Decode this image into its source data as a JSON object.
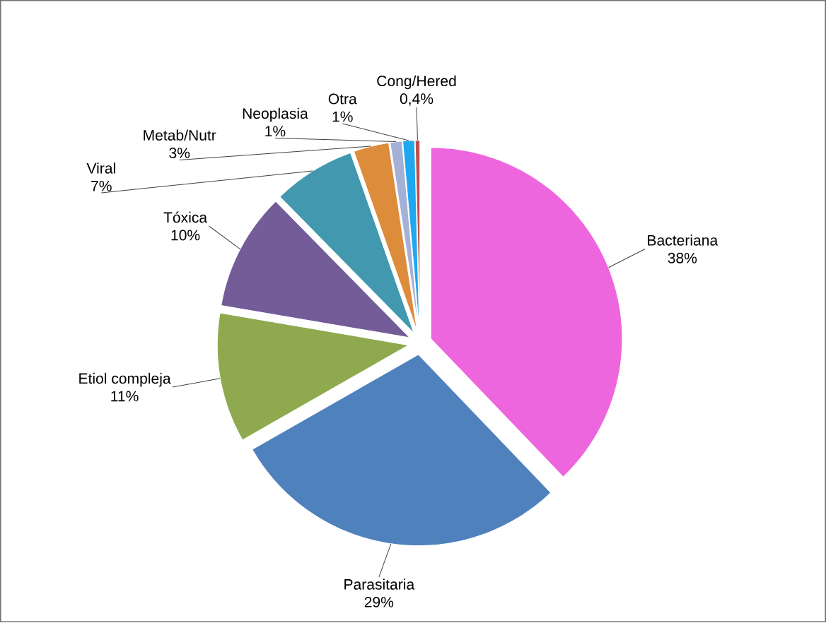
{
  "chart_data": {
    "type": "pie",
    "categories": [
      "Bacteriana",
      "Parasitaria",
      "Etiol compleja",
      "Tóxica",
      "Viral",
      "Metab/Nutr",
      "Neoplasia",
      "Otra",
      "Cong/Hered"
    ],
    "values": [
      38,
      29,
      11,
      10,
      7,
      3,
      1,
      1,
      0.4
    ],
    "value_labels": [
      "38%",
      "29%",
      "11%",
      "10%",
      "7%",
      "3%",
      "1%",
      "1%",
      "0,4%"
    ],
    "colors": [
      "#ee66dd",
      "#4f81bd",
      "#8faa4e",
      "#735c98",
      "#4198af",
      "#dd8c3c",
      "#a5b0d6",
      "#1ea8ef",
      "#c0504d"
    ]
  }
}
